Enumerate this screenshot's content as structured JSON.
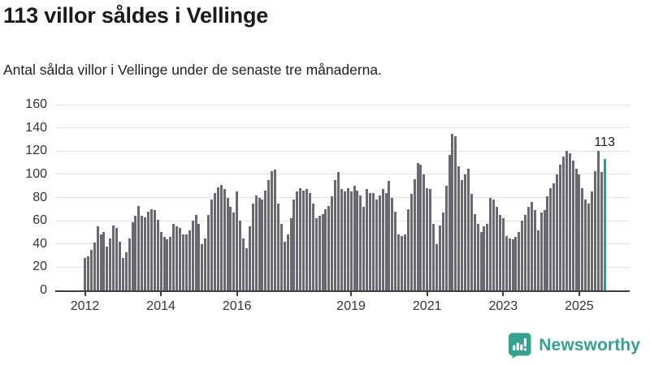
{
  "header": {
    "title": "113 villor såldes i Vellinge",
    "subtitle": "Antal sålda villor i Vellinge under de senaste tre månaderna."
  },
  "chart_data": {
    "type": "bar",
    "title": "113 villor såldes i Vellinge",
    "subtitle": "Antal sålda villor i Vellinge under de senaste tre månaderna.",
    "x_start": "2012-01",
    "x_end": "2025-09",
    "x_frequency": "monthly",
    "values": [
      28,
      29,
      35,
      41,
      55,
      48,
      50,
      38,
      45,
      56,
      54,
      42,
      28,
      33,
      45,
      59,
      64,
      73,
      64,
      63,
      68,
      70,
      69,
      61,
      50,
      46,
      44,
      46,
      57,
      55,
      54,
      48,
      48,
      52,
      60,
      65,
      57,
      40,
      45,
      65,
      78,
      84,
      89,
      91,
      87,
      80,
      72,
      67,
      85,
      60,
      45,
      36,
      55,
      75,
      82,
      80,
      78,
      86,
      95,
      103,
      104,
      75,
      57,
      42,
      48,
      62,
      78,
      85,
      88,
      86,
      87,
      84,
      75,
      62,
      64,
      66,
      70,
      73,
      81,
      95,
      102,
      87,
      85,
      88,
      85,
      90,
      86,
      82,
      72,
      87,
      84,
      84,
      78,
      82,
      87,
      84,
      94,
      80,
      68,
      48,
      47,
      48,
      70,
      83,
      96,
      110,
      108,
      100,
      88,
      87,
      57,
      40,
      56,
      67,
      90,
      117,
      135,
      133,
      107,
      95,
      100,
      105,
      83,
      66,
      57,
      50,
      55,
      57,
      80,
      78,
      72,
      65,
      62,
      47,
      45,
      44,
      46,
      50,
      60,
      65,
      72,
      76,
      69,
      52,
      67,
      69,
      81,
      88,
      92,
      100,
      108,
      115,
      120,
      118,
      112,
      105,
      100,
      88,
      78,
      75,
      85,
      103,
      120,
      102,
      113
    ],
    "highlight_last_value": 113,
    "annotation": {
      "label": "113"
    },
    "ylim": [
      0,
      160
    ],
    "y_ticks": [
      0,
      20,
      40,
      60,
      80,
      100,
      120,
      140,
      160
    ],
    "x_tick_labels": [
      "2012",
      "2014",
      "2016",
      "2019",
      "2021",
      "2023",
      "2025"
    ],
    "x_tick_month_index": [
      0,
      24,
      48,
      84,
      108,
      132,
      156
    ],
    "grid": "horizontal",
    "legend": "none",
    "colors": {
      "bar": "#6a6972",
      "highlight": "#14a3a2",
      "grid": "#e3e3e3",
      "axis": "#3f3f3f",
      "tick_text": "#333333"
    }
  },
  "footer": {
    "brand": "Newsworthy",
    "brand_color": "#37a08e",
    "icon": "newsworthy-chart-bubble-icon"
  }
}
